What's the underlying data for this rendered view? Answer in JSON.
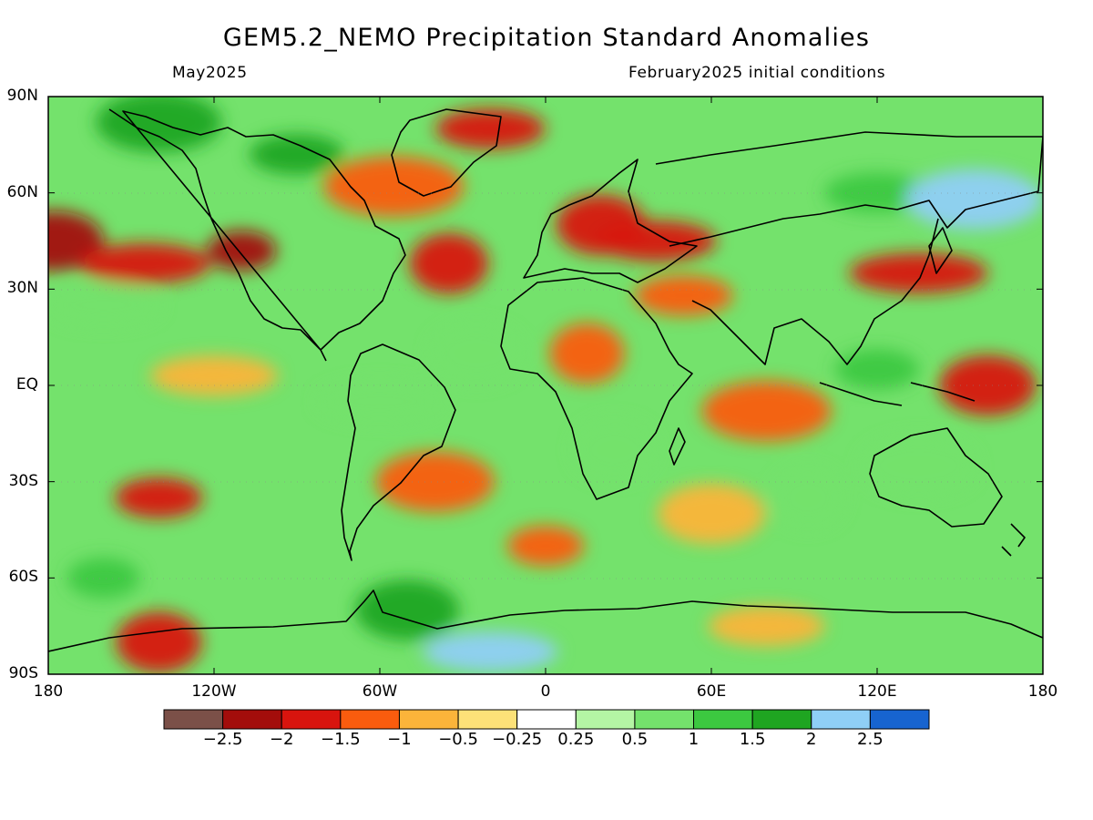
{
  "title": "GEM5.2_NEMO Precipitation Standard Anomalies",
  "subtitle_left": "May2025",
  "subtitle_right": "February2025 initial conditions",
  "lat_labels": [
    "90N",
    "60N",
    "30N",
    "EQ",
    "30S",
    "60S",
    "90S"
  ],
  "lat_values": [
    90,
    60,
    30,
    0,
    -30,
    -60,
    -90
  ],
  "lon_labels": [
    "180",
    "120W",
    "60W",
    "0",
    "60E",
    "120E",
    "180"
  ],
  "lon_values": [
    -180,
    -120,
    -60,
    0,
    60,
    120,
    180
  ],
  "colorbar": {
    "colors": [
      "#7b5048",
      "#a30d0b",
      "#d8140e",
      "#fa5c0e",
      "#fbb43a",
      "#fde178",
      "#ffffff",
      "#b4f5a4",
      "#74e26c",
      "#3cc840",
      "#1fa521",
      "#8fcff6",
      "#1764d0"
    ],
    "labels": [
      "−2.5",
      "−2",
      "−1.5",
      "−1",
      "−0.5",
      "−0.25",
      "0.25",
      "0.5",
      "1",
      "1.5",
      "2",
      "2.5"
    ]
  },
  "anomaly_fields": [
    {
      "region": "Northwest North America",
      "lon": -110,
      "lat": 42,
      "level": -2
    },
    {
      "region": "North Pacific",
      "lon": -178,
      "lat": 45,
      "level": -2
    },
    {
      "region": "Northeast Pacific",
      "lon": -145,
      "lat": 38,
      "level": -1.5
    },
    {
      "region": "Western Europe / Russia",
      "lon": 20,
      "lat": 50,
      "level": -1.5
    },
    {
      "region": "Eastern Europe",
      "lon": 40,
      "lat": 45,
      "level": -1.5
    },
    {
      "region": "North Atlantic",
      "lon": -35,
      "lat": 38,
      "level": -1.5
    },
    {
      "region": "Greenland Sea",
      "lon": -20,
      "lat": 80,
      "level": -1.5
    },
    {
      "region": "Labrador",
      "lon": -55,
      "lat": 62,
      "level": -1
    },
    {
      "region": "Middle East",
      "lon": 50,
      "lat": 28,
      "level": -1
    },
    {
      "region": "Tropical Indian Ocean",
      "lon": 80,
      "lat": -8,
      "level": -1
    },
    {
      "region": "South Pacific",
      "lon": -140,
      "lat": -35,
      "level": -1.5
    },
    {
      "region": "South Atlantic",
      "lon": -40,
      "lat": -30,
      "level": -1
    },
    {
      "region": "Southern Ocean (Atlantic)",
      "lon": 0,
      "lat": -50,
      "level": -1
    },
    {
      "region": "Southern Ocean (Indian)",
      "lon": 60,
      "lat": -40,
      "level": -0.5
    },
    {
      "region": "Western Pacific (Japan)",
      "lon": 135,
      "lat": 35,
      "level": -1.5
    },
    {
      "region": "Equatorial West Pacific",
      "lon": 160,
      "lat": 0,
      "level": -1.5
    },
    {
      "region": "Equatorial East Pacific",
      "lon": -120,
      "lat": 3,
      "level": -0.5
    },
    {
      "region": "Antarctic Pacific sector",
      "lon": -140,
      "lat": -80,
      "level": -1.5
    },
    {
      "region": "Antarctic coast (Indian)",
      "lon": 80,
      "lat": -75,
      "level": -0.5
    },
    {
      "region": "Central Africa",
      "lon": 15,
      "lat": 10,
      "level": -1
    },
    {
      "region": "Siberia",
      "lon": 120,
      "lat": 60,
      "level": 1.5
    },
    {
      "region": "Northeast Siberia",
      "lon": 155,
      "lat": 58,
      "level": 2.5
    },
    {
      "region": "Canadian Arctic",
      "lon": -90,
      "lat": 72,
      "level": 2
    },
    {
      "region": "Arctic Ocean",
      "lon": -140,
      "lat": 82,
      "level": 2
    },
    {
      "region": "Maritime Continent",
      "lon": 120,
      "lat": 5,
      "level": 1.5
    },
    {
      "region": "Australia",
      "lon": 135,
      "lat": -25,
      "level": 1
    },
    {
      "region": "Southern Ocean (Pacific)",
      "lon": -160,
      "lat": -60,
      "level": 1.5
    },
    {
      "region": "Antarctic Peninsula",
      "lon": -50,
      "lat": -70,
      "level": 2
    },
    {
      "region": "Antarctica interior",
      "lon": -20,
      "lat": -83,
      "level": 2.5
    },
    {
      "region": "Tropical Atlantic",
      "lon": -25,
      "lat": 10,
      "level": 1
    },
    {
      "region": "Amazon",
      "lon": -60,
      "lat": -5,
      "level": 1
    },
    {
      "region": "Southern Africa",
      "lon": 25,
      "lat": -20,
      "level": 1
    },
    {
      "region": "North Pacific subtropics",
      "lon": -160,
      "lat": 25,
      "level": 1
    },
    {
      "region": "South Indian Ocean",
      "lon": 95,
      "lat": -35,
      "level": 1
    }
  ]
}
